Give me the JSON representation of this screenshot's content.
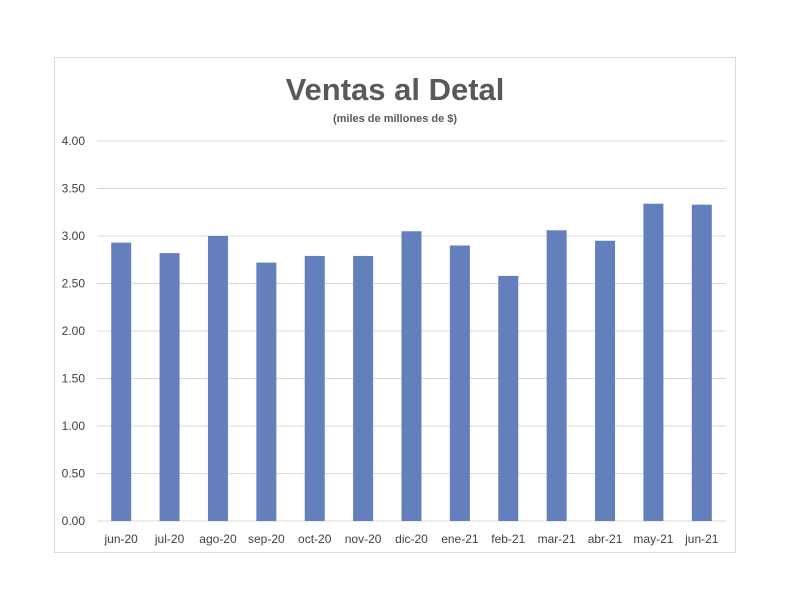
{
  "chart_data": {
    "type": "bar",
    "title": "Ventas al Detal",
    "subtitle": "(miles de millones de $)",
    "categories": [
      "jun-20",
      "jul-20",
      "ago-20",
      "sep-20",
      "oct-20",
      "nov-20",
      "dic-20",
      "ene-21",
      "feb-21",
      "mar-21",
      "abr-21",
      "may-21",
      "jun-21"
    ],
    "values": [
      2.93,
      2.82,
      3.0,
      2.72,
      2.79,
      2.79,
      3.05,
      2.9,
      2.58,
      3.06,
      2.95,
      3.34,
      3.33
    ],
    "ylim": [
      0,
      4
    ],
    "yticks": [
      "0.00",
      "0.50",
      "1.00",
      "1.50",
      "2.00",
      "2.50",
      "3.00",
      "3.50",
      "4.00"
    ],
    "xlabel": "",
    "ylabel": "",
    "grid": true,
    "bar_color": "#6380bc"
  }
}
